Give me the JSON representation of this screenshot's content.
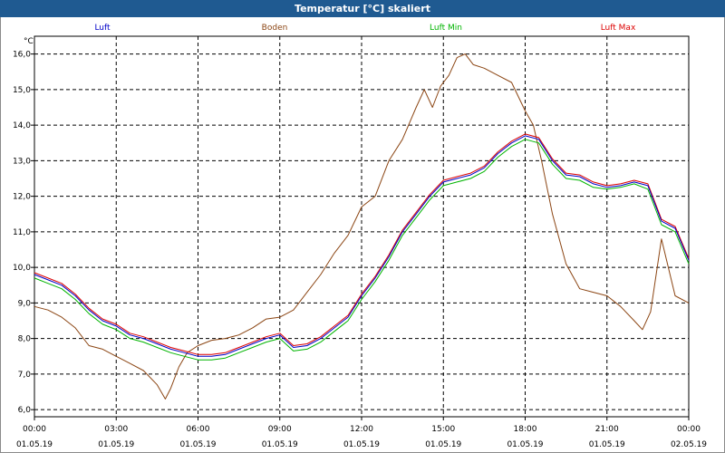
{
  "window_title": "Temperatur [°C] skaliert",
  "chart_data": {
    "type": "line",
    "title": "Temperatur [°C] skaliert",
    "ylabel": "°C",
    "ylim": [
      5.8,
      16.5
    ],
    "xlim": [
      0,
      24
    ],
    "yticks": [
      6,
      7,
      8,
      9,
      10,
      11,
      12,
      13,
      14,
      15,
      16
    ],
    "ytick_labels": [
      "6,0",
      "7,0",
      "8,0",
      "9,0",
      "10,0",
      "11,0",
      "12,0",
      "13,0",
      "14,0",
      "15,0",
      "16,0"
    ],
    "xticks": [
      0,
      3,
      6,
      9,
      12,
      15,
      18,
      21,
      24
    ],
    "xtick_times": [
      "00:00",
      "03:00",
      "06:00",
      "09:00",
      "12:00",
      "15:00",
      "18:00",
      "21:00",
      "00:00"
    ],
    "xtick_dates": [
      "01.05.19",
      "01.05.19",
      "01.05.19",
      "01.05.19",
      "01.05.19",
      "01.05.19",
      "01.05.19",
      "01.05.19",
      "02.05.19"
    ],
    "grid": true,
    "legend_position": "top",
    "series": [
      {
        "name": "Luft",
        "color": "#0000c8",
        "x": [
          0,
          0.5,
          1,
          1.5,
          2,
          2.5,
          3,
          3.5,
          4,
          4.5,
          5,
          5.5,
          6,
          6.5,
          7,
          7.5,
          8,
          8.5,
          9,
          9.5,
          10,
          10.5,
          11,
          11.5,
          12,
          12.5,
          13,
          13.5,
          14,
          14.5,
          15,
          15.5,
          16,
          16.5,
          17,
          17.5,
          18,
          18.5,
          19,
          19.5,
          20,
          20.5,
          21,
          21.5,
          22,
          22.5,
          23,
          23.5,
          24
        ],
        "values": [
          9.8,
          9.65,
          9.5,
          9.2,
          8.8,
          8.5,
          8.35,
          8.1,
          8.0,
          7.85,
          7.7,
          7.6,
          7.5,
          7.5,
          7.55,
          7.7,
          7.85,
          8.0,
          8.1,
          7.75,
          7.8,
          8.0,
          8.3,
          8.6,
          9.2,
          9.7,
          10.3,
          11.0,
          11.5,
          12.0,
          12.4,
          12.5,
          12.6,
          12.8,
          13.2,
          13.5,
          13.7,
          13.6,
          13.0,
          12.6,
          12.55,
          12.35,
          12.25,
          12.3,
          12.4,
          12.3,
          11.3,
          11.1,
          10.2
        ]
      },
      {
        "name": "Boden",
        "color": "#8b4513",
        "x": [
          0,
          0.5,
          1,
          1.5,
          2,
          2.5,
          3,
          3.5,
          4,
          4.5,
          4.8,
          5,
          5.3,
          5.6,
          6,
          6.5,
          7,
          7.5,
          8,
          8.5,
          9,
          9.5,
          10,
          10.5,
          11,
          11.5,
          12,
          12.5,
          13,
          13.5,
          14,
          14.3,
          14.6,
          14.9,
          15.2,
          15.5,
          15.8,
          16.1,
          16.5,
          17,
          17.5,
          18,
          18.3,
          18.6,
          19,
          19.5,
          20,
          20.5,
          21,
          21.5,
          22,
          22.3,
          22.6,
          23,
          23.5,
          24
        ],
        "values": [
          8.9,
          8.8,
          8.6,
          8.3,
          7.8,
          7.7,
          7.5,
          7.3,
          7.1,
          6.7,
          6.3,
          6.6,
          7.2,
          7.6,
          7.8,
          7.95,
          8.0,
          8.1,
          8.3,
          8.55,
          8.6,
          8.8,
          9.3,
          9.8,
          10.4,
          10.9,
          11.7,
          12.0,
          13.0,
          13.6,
          14.5,
          15.0,
          14.5,
          15.1,
          15.4,
          15.9,
          16.0,
          15.7,
          15.6,
          15.4,
          15.2,
          14.4,
          14.0,
          13.0,
          11.5,
          10.1,
          9.4,
          9.3,
          9.2,
          8.9,
          8.5,
          8.25,
          8.75,
          10.8,
          9.2,
          9.0
        ]
      },
      {
        "name": "Luft Min",
        "color": "#00b400",
        "x": [
          0,
          0.5,
          1,
          1.5,
          2,
          2.5,
          3,
          3.5,
          4,
          4.5,
          5,
          5.5,
          6,
          6.5,
          7,
          7.5,
          8,
          8.5,
          9,
          9.5,
          10,
          10.5,
          11,
          11.5,
          12,
          12.5,
          13,
          13.5,
          14,
          14.5,
          15,
          15.5,
          16,
          16.5,
          17,
          17.5,
          18,
          18.5,
          19,
          19.5,
          20,
          20.5,
          21,
          21.5,
          22,
          22.5,
          23,
          23.5,
          24
        ],
        "values": [
          9.7,
          9.55,
          9.4,
          9.1,
          8.7,
          8.4,
          8.25,
          8.0,
          7.9,
          7.75,
          7.6,
          7.5,
          7.4,
          7.4,
          7.45,
          7.6,
          7.75,
          7.9,
          8.0,
          7.65,
          7.7,
          7.9,
          8.2,
          8.5,
          9.1,
          9.6,
          10.2,
          10.9,
          11.4,
          11.9,
          12.3,
          12.4,
          12.5,
          12.7,
          13.1,
          13.4,
          13.6,
          13.5,
          12.9,
          12.5,
          12.45,
          12.25,
          12.2,
          12.25,
          12.35,
          12.2,
          11.2,
          11.0,
          10.1
        ]
      },
      {
        "name": "Luft Max",
        "color": "#dc0000",
        "x": [
          0,
          0.5,
          1,
          1.5,
          2,
          2.5,
          3,
          3.5,
          4,
          4.5,
          5,
          5.5,
          6,
          6.5,
          7,
          7.5,
          8,
          8.5,
          9,
          9.5,
          10,
          10.5,
          11,
          11.5,
          12,
          12.5,
          13,
          13.5,
          14,
          14.5,
          15,
          15.5,
          16,
          16.5,
          17,
          17.5,
          18,
          18.5,
          19,
          19.5,
          20,
          20.5,
          21,
          21.5,
          22,
          22.5,
          23,
          23.5,
          24
        ],
        "values": [
          9.85,
          9.7,
          9.55,
          9.25,
          8.85,
          8.55,
          8.4,
          8.15,
          8.05,
          7.9,
          7.75,
          7.65,
          7.55,
          7.55,
          7.6,
          7.75,
          7.9,
          8.05,
          8.15,
          7.8,
          7.85,
          8.05,
          8.35,
          8.65,
          9.25,
          9.75,
          10.35,
          11.05,
          11.55,
          12.05,
          12.45,
          12.55,
          12.65,
          12.85,
          13.25,
          13.55,
          13.75,
          13.65,
          13.05,
          12.65,
          12.6,
          12.4,
          12.3,
          12.35,
          12.45,
          12.35,
          11.35,
          11.15,
          10.25
        ]
      }
    ]
  }
}
